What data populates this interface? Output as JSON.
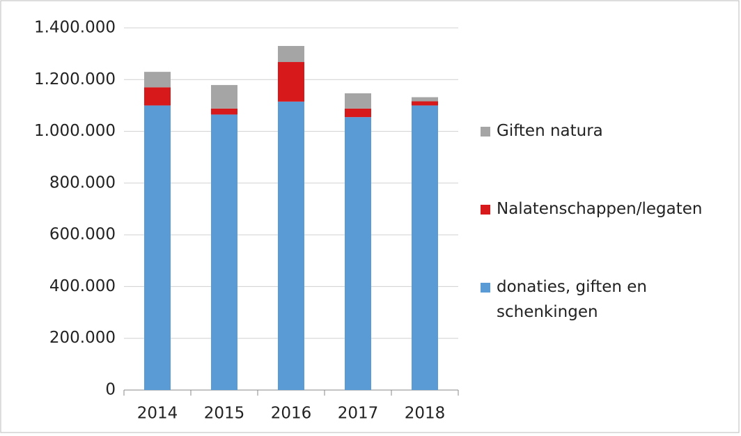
{
  "chart_data": {
    "type": "stacked_bar",
    "categories": [
      "2014",
      "2015",
      "2016",
      "2017",
      "2018"
    ],
    "series": [
      {
        "name": "donaties, giften en schenkingen",
        "color": "#5b9bd5",
        "values": [
          1100000,
          1065000,
          1115000,
          1055000,
          1100000
        ]
      },
      {
        "name": "Nalatenschappen/legaten",
        "color": "#d7191c",
        "values": [
          70000,
          23000,
          153000,
          33000,
          16000
        ]
      },
      {
        "name": "Giften natura",
        "color": "#a5a5a5",
        "values": [
          60000,
          91000,
          62000,
          59000,
          16000
        ]
      }
    ],
    "ylim": [
      0,
      1400000
    ],
    "yticks": [
      0,
      {
        "value": 200000,
        "label": "200.000"
      },
      {
        "value": 400000,
        "label": "400.000"
      },
      {
        "value": 600000,
        "label": "600.000"
      },
      {
        "value": 800000,
        "label": "800.000"
      },
      {
        "value": 1000000,
        "label": "1.000.000"
      },
      {
        "value": 1200000,
        "label": "1.200.000"
      },
      {
        "value": 1400000,
        "label": "1.400.000"
      }
    ],
    "grid": true,
    "legend": "right"
  }
}
